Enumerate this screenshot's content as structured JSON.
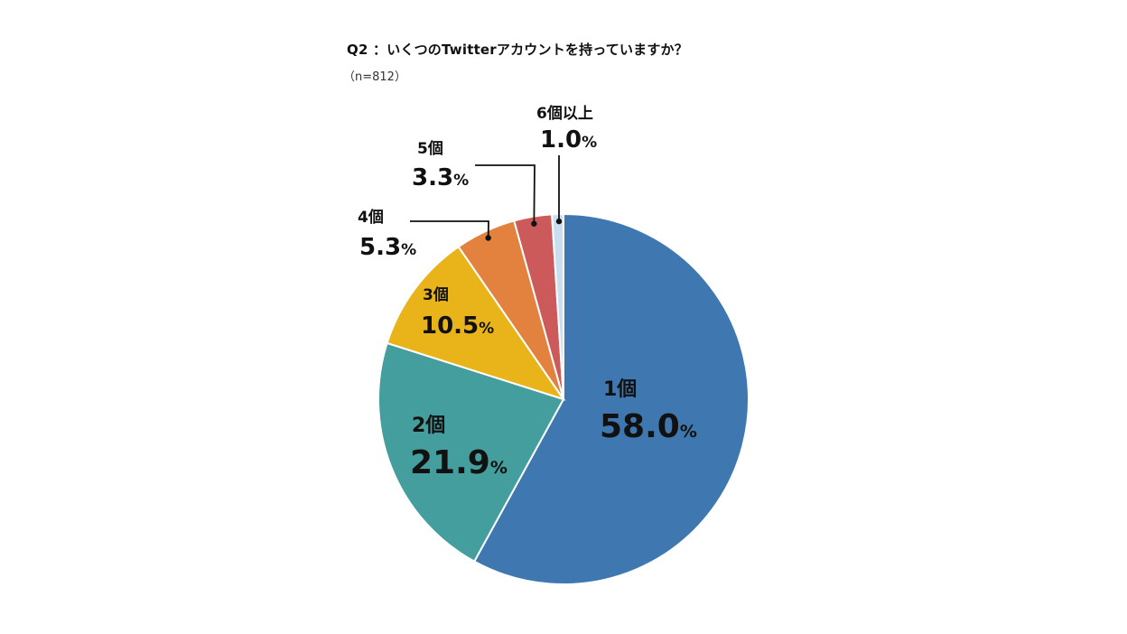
{
  "chart_data": {
    "type": "pie",
    "title": "Q2 ：いくつのTwitterアカウントを持っていますか？",
    "subtitle": "（n=812）",
    "unit": "%",
    "slices": [
      {
        "label": "1個",
        "value": 58.0,
        "display": "58.0",
        "color": "#3f78b0"
      },
      {
        "label": "2個",
        "value": 21.9,
        "display": "21.9",
        "color": "#439e9d"
      },
      {
        "label": "3個",
        "value": 10.5,
        "display": "10.5",
        "color": "#e8b419"
      },
      {
        "label": "4個",
        "value": 5.3,
        "display": "5.3",
        "color": "#e2823e"
      },
      {
        "label": "5個",
        "value": 3.3,
        "display": "3.3",
        "color": "#cd5a5a"
      },
      {
        "label": "6個以上",
        "value": 1.0,
        "display": "1.0",
        "color": "#c9dff0"
      }
    ]
  }
}
